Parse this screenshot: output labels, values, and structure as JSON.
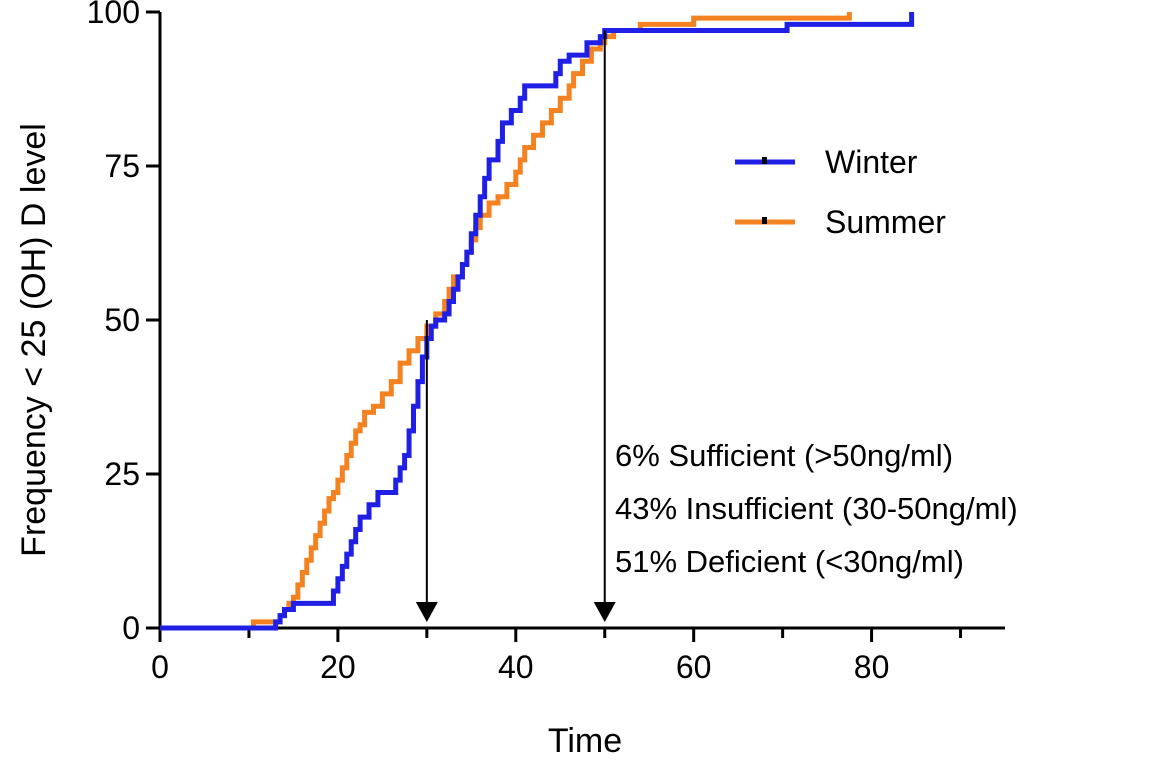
{
  "chart_data": {
    "type": "line",
    "title": "",
    "xlabel": "Time",
    "ylabel": "Frequency < 25 (OH) D level",
    "xlim": [
      0,
      95
    ],
    "ylim": [
      0,
      100
    ],
    "x_ticks": [
      "0",
      "20",
      "40",
      "60",
      "80"
    ],
    "y_ticks": [
      "0",
      "25",
      "50",
      "75",
      "100"
    ],
    "legend_position": "upper-right",
    "grid": false,
    "series": [
      {
        "name": "Winter",
        "color": "#1f1fe6",
        "points": [
          [
            0,
            0
          ],
          [
            12.5,
            0
          ],
          [
            13,
            1
          ],
          [
            13.5,
            2
          ],
          [
            14,
            3
          ],
          [
            15,
            4
          ],
          [
            19,
            4
          ],
          [
            19.5,
            6
          ],
          [
            20,
            8
          ],
          [
            20.5,
            10
          ],
          [
            21,
            12
          ],
          [
            21.5,
            14
          ],
          [
            22,
            16
          ],
          [
            22.5,
            18
          ],
          [
            23.5,
            20
          ],
          [
            24.5,
            22
          ],
          [
            26.5,
            24
          ],
          [
            27,
            26
          ],
          [
            27.5,
            28
          ],
          [
            28,
            32
          ],
          [
            28.5,
            36
          ],
          [
            29,
            40
          ],
          [
            29.5,
            44
          ],
          [
            30,
            47
          ],
          [
            30.5,
            49
          ],
          [
            31,
            50
          ],
          [
            32,
            51
          ],
          [
            32.5,
            53
          ],
          [
            33,
            55
          ],
          [
            33.5,
            57
          ],
          [
            34,
            59
          ],
          [
            34.5,
            61
          ],
          [
            35,
            64
          ],
          [
            35.5,
            67
          ],
          [
            36,
            70
          ],
          [
            36.5,
            73
          ],
          [
            37,
            76
          ],
          [
            38,
            79
          ],
          [
            38.5,
            82
          ],
          [
            39.5,
            84
          ],
          [
            40.5,
            86
          ],
          [
            41,
            88
          ],
          [
            44,
            88
          ],
          [
            44.5,
            90
          ],
          [
            45,
            92
          ],
          [
            46,
            93
          ],
          [
            48,
            95
          ],
          [
            49.5,
            96
          ],
          [
            50,
            97
          ],
          [
            70,
            97
          ],
          [
            70.5,
            98
          ],
          [
            84.5,
            98
          ],
          [
            84.5,
            100
          ]
        ]
      },
      {
        "name": "Summer",
        "color": "#f58220",
        "points": [
          [
            0,
            0
          ],
          [
            10,
            0
          ],
          [
            10.5,
            1
          ],
          [
            13,
            1
          ],
          [
            13.5,
            2
          ],
          [
            14,
            3
          ],
          [
            14.5,
            4
          ],
          [
            15,
            5
          ],
          [
            15.5,
            7
          ],
          [
            16,
            9
          ],
          [
            16.5,
            11
          ],
          [
            17,
            13
          ],
          [
            17.5,
            15
          ],
          [
            18,
            17
          ],
          [
            18.5,
            19
          ],
          [
            19,
            21
          ],
          [
            19.5,
            22
          ],
          [
            20,
            24
          ],
          [
            20.5,
            26
          ],
          [
            21,
            28
          ],
          [
            21.5,
            30
          ],
          [
            22,
            32
          ],
          [
            22.5,
            33
          ],
          [
            23,
            35
          ],
          [
            24,
            36
          ],
          [
            25,
            38
          ],
          [
            26,
            40
          ],
          [
            27,
            43
          ],
          [
            28,
            45
          ],
          [
            29,
            47
          ],
          [
            30,
            49
          ],
          [
            31,
            51
          ],
          [
            32,
            53
          ],
          [
            32.5,
            55
          ],
          [
            33,
            57
          ],
          [
            34,
            59
          ],
          [
            34.5,
            61
          ],
          [
            35,
            63
          ],
          [
            35.5,
            65
          ],
          [
            36,
            67
          ],
          [
            37,
            69
          ],
          [
            38,
            70
          ],
          [
            39,
            72
          ],
          [
            40,
            74
          ],
          [
            40.5,
            76
          ],
          [
            41,
            78
          ],
          [
            42,
            80
          ],
          [
            43,
            82
          ],
          [
            44,
            84
          ],
          [
            45,
            86
          ],
          [
            46,
            88
          ],
          [
            46.5,
            90
          ],
          [
            47.5,
            92
          ],
          [
            48.5,
            94
          ],
          [
            49.5,
            95
          ],
          [
            50,
            96
          ],
          [
            51,
            97
          ],
          [
            53,
            97
          ],
          [
            54,
            98
          ],
          [
            58,
            98
          ],
          [
            60,
            99
          ],
          [
            77.5,
            99
          ],
          [
            77.5,
            100
          ]
        ]
      }
    ],
    "annotations": [
      {
        "type": "arrow",
        "x": 30,
        "y_from": 50,
        "y_to": 0
      },
      {
        "type": "arrow",
        "x": 50,
        "y_from": 97,
        "y_to": 0
      },
      {
        "type": "text",
        "text": "6% Sufficient (>50ng/ml)"
      },
      {
        "type": "text",
        "text": "43% Insufficient (30-50ng/ml)"
      },
      {
        "type": "text",
        "text": "51% Deficient (<30ng/ml)"
      }
    ]
  }
}
